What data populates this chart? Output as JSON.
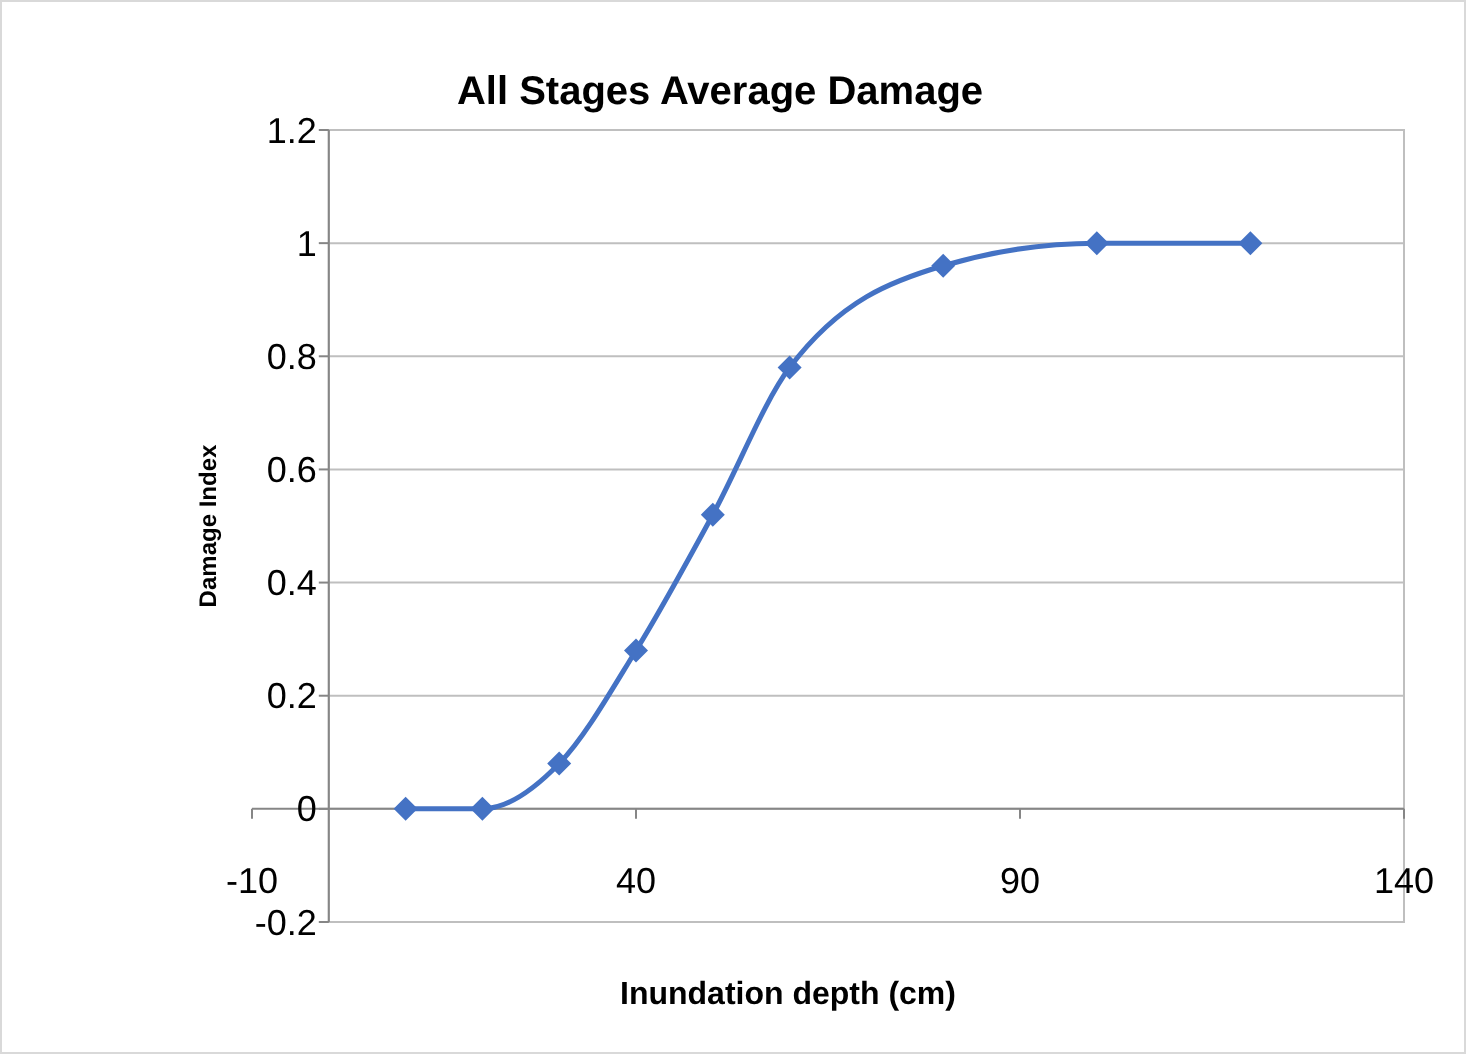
{
  "chart_data": {
    "type": "line",
    "title": "All Stages Average Damage",
    "xlabel": "Inundation depth (cm)",
    "ylabel": "Damage Index",
    "x": [
      10,
      20,
      30,
      40,
      50,
      60,
      80,
      100,
      120
    ],
    "series": [
      {
        "color": "#4472c4",
        "values": [
          0,
          0,
          0.08,
          0.28,
          0.52,
          0.78,
          0.96,
          1.0,
          1.0
        ]
      }
    ],
    "xlim": [
      -10,
      140
    ],
    "xticks": [
      -10,
      40,
      90,
      140
    ],
    "ylim": [
      -0.2,
      1.2
    ],
    "yticks": [
      -0.2,
      0,
      0.2,
      0.4,
      0.6,
      0.8,
      1,
      1.2
    ],
    "grid": "y",
    "marker": "diamond",
    "line_style": "solid"
  }
}
